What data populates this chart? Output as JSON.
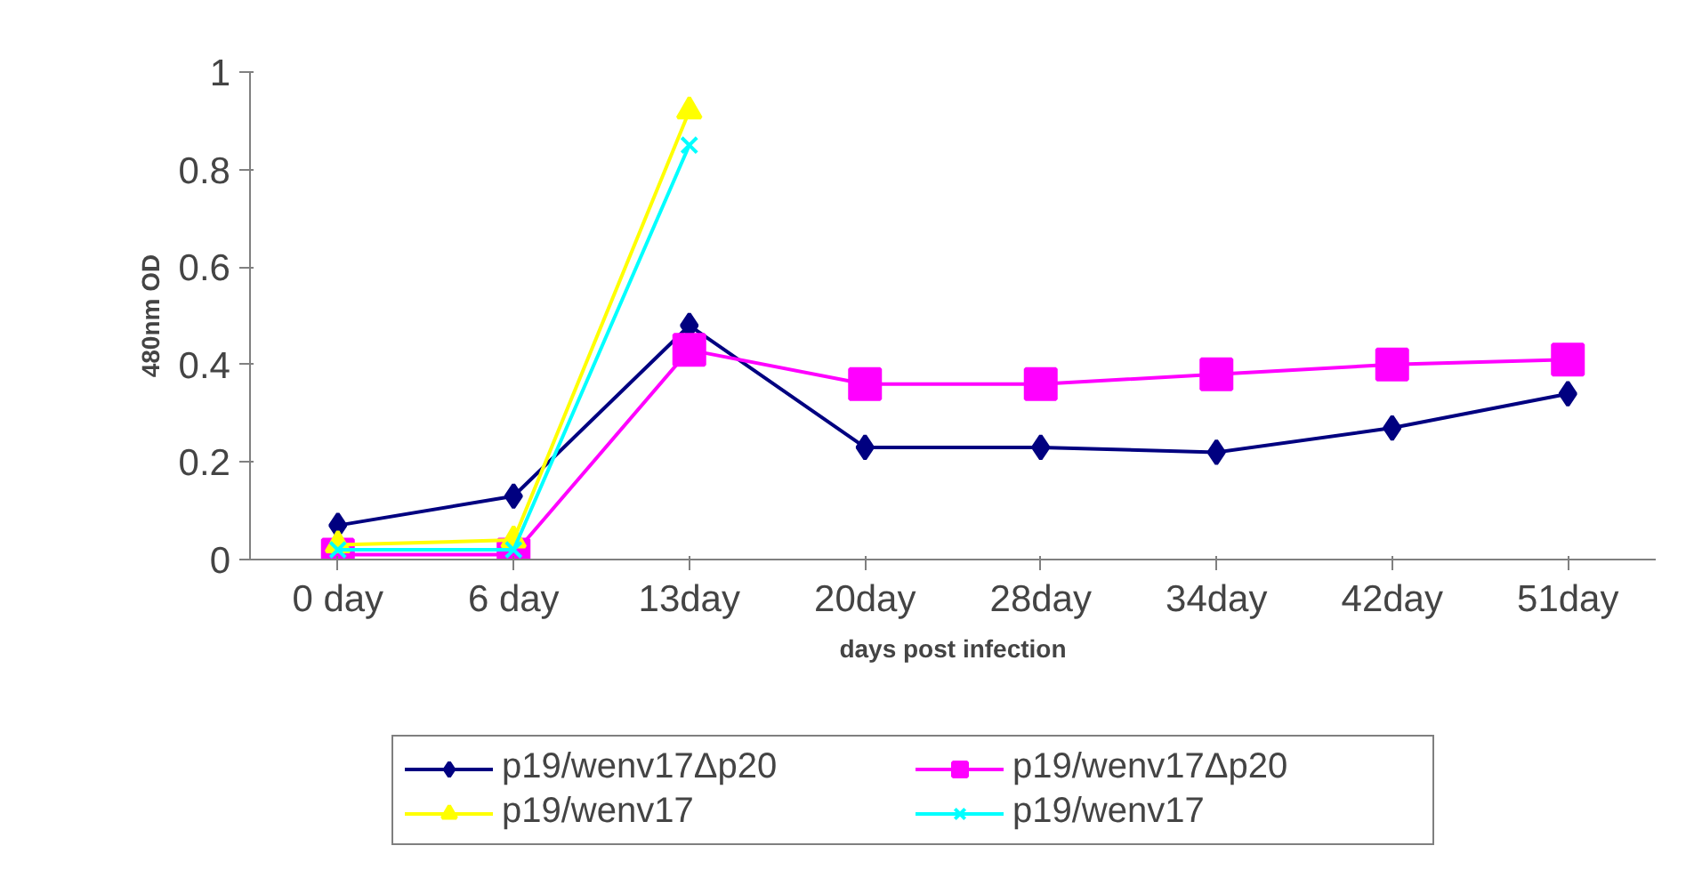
{
  "chart_data": {
    "type": "line",
    "xlabel": "days post infection",
    "ylabel": "480nm OD",
    "categories": [
      "0 day",
      "6 day",
      "13day",
      "20day",
      "28day",
      "34day",
      "42day",
      "51day"
    ],
    "series": [
      {
        "name": "p19/wenv17Δp20",
        "color": "#000080",
        "marker": "diamond",
        "values": [
          0.07,
          0.13,
          0.48,
          0.23,
          0.23,
          0.22,
          0.27,
          0.34
        ]
      },
      {
        "name": "p19/wenv17Δp20",
        "color": "#ff00ff",
        "marker": "square",
        "values": [
          0.01,
          0.01,
          0.43,
          0.36,
          0.36,
          0.38,
          0.4,
          0.41
        ]
      },
      {
        "name": "p19/wenv17",
        "color": "#ffff00",
        "marker": "triangle",
        "values": [
          0.03,
          0.04,
          0.92,
          null,
          null,
          null,
          null,
          null
        ]
      },
      {
        "name": "p19/wenv17",
        "color": "#00ffff",
        "marker": "cross",
        "values": [
          0.02,
          0.02,
          0.85,
          null,
          null,
          null,
          null,
          null
        ]
      }
    ],
    "ylim": [
      0,
      1
    ],
    "yticks": [
      0,
      0.2,
      0.4,
      0.6,
      0.8,
      1
    ],
    "grid": false,
    "legend": "bottom"
  }
}
